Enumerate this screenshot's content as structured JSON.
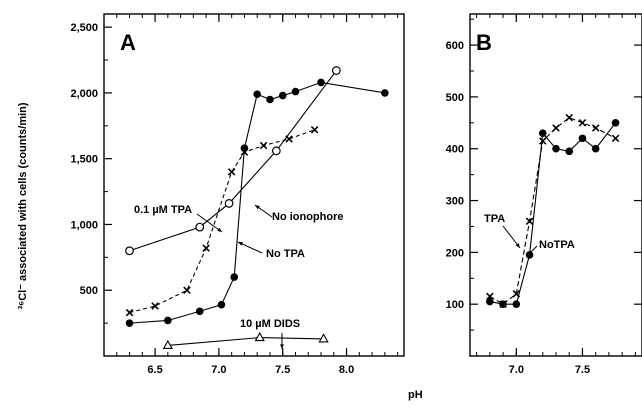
{
  "axis_titles": {
    "y": "³⁶Cl⁻ associated with cells (counts/min)",
    "x": "pH"
  },
  "chart_data": [
    {
      "type": "line",
      "panel_label": "A",
      "xlim": [
        6.1,
        8.45
      ],
      "ylim": [
        0,
        2600
      ],
      "x_ticks": [
        6.5,
        7.0,
        7.5,
        8.0
      ],
      "x_tick_labels": [
        "6.5",
        "7.0",
        "7.5",
        "8.0"
      ],
      "y_ticks": [
        500,
        1000,
        1500,
        2000,
        2500
      ],
      "y_tick_labels": [
        "500",
        "1,000",
        "1,500",
        "2,000",
        "2,500"
      ],
      "series": [
        {
          "name": "No ionophore",
          "marker": "open-circle",
          "x": [
            6.3,
            6.85,
            7.08,
            7.45,
            7.92
          ],
          "y": [
            800,
            980,
            1160,
            1560,
            2170
          ]
        },
        {
          "name": "No TPA",
          "marker": "filled-circle",
          "x": [
            6.3,
            6.6,
            6.85,
            7.02,
            7.12,
            7.2,
            7.3,
            7.4,
            7.5,
            7.6,
            7.8,
            8.3
          ],
          "y": [
            250,
            270,
            340,
            390,
            600,
            1580,
            1990,
            1950,
            1980,
            2010,
            2080,
            2000
          ]
        },
        {
          "name": "0.1 µM TPA",
          "marker": "cross",
          "x": [
            6.3,
            6.5,
            6.75,
            6.9,
            7.1,
            7.2,
            7.35,
            7.55,
            7.75
          ],
          "y": [
            330,
            380,
            500,
            820,
            1400,
            1550,
            1600,
            1650,
            1720
          ]
        },
        {
          "name": "10 µM DIDS",
          "marker": "open-triangle",
          "x": [
            6.6,
            7.32,
            7.82
          ],
          "y": [
            80,
            140,
            130
          ]
        }
      ],
      "annotations": [
        "0.1 µM TPA",
        "No ionophore",
        "No TPA",
        "10 µM DIDS"
      ]
    },
    {
      "type": "line",
      "panel_label": "B",
      "xlim": [
        6.65,
        7.95
      ],
      "ylim": [
        0,
        660
      ],
      "x_ticks": [
        7.0,
        7.5
      ],
      "x_tick_labels": [
        "7.0",
        "7.5"
      ],
      "y_ticks": [
        100,
        200,
        300,
        400,
        500,
        600
      ],
      "y_tick_labels": [
        "100",
        "200",
        "300",
        "400",
        "500",
        "600"
      ],
      "series": [
        {
          "name": "TPA",
          "marker": "cross",
          "x": [
            6.8,
            6.9,
            7.0,
            7.1,
            7.2,
            7.3,
            7.4,
            7.5,
            7.6,
            7.75
          ],
          "y": [
            115,
            100,
            120,
            260,
            415,
            440,
            460,
            450,
            440,
            420
          ]
        },
        {
          "name": "NoTPA",
          "marker": "filled-circle",
          "x": [
            6.8,
            6.9,
            7.0,
            7.1,
            7.2,
            7.3,
            7.4,
            7.5,
            7.6,
            7.75
          ],
          "y": [
            105,
            100,
            100,
            195,
            430,
            400,
            395,
            420,
            400,
            450
          ]
        }
      ],
      "annotations": [
        "TPA",
        "NoTPA"
      ]
    }
  ]
}
